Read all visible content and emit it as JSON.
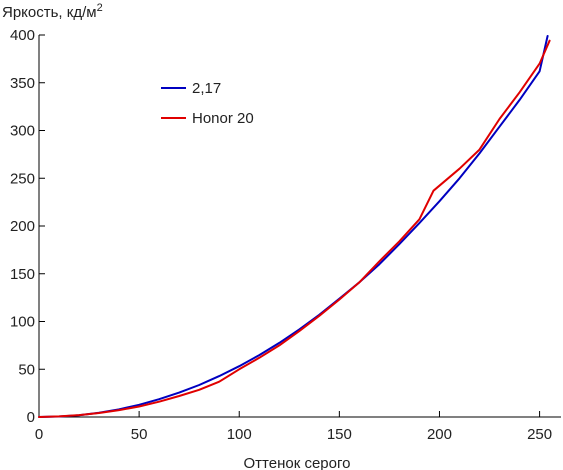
{
  "chart_data": {
    "type": "line",
    "ylabel": "Яркость, кд/м",
    "ylabel_sup": "2",
    "xlabel": "Оттенок серого",
    "xlim": [
      0,
      255
    ],
    "ylim": [
      0,
      400
    ],
    "xticks": [
      0,
      50,
      100,
      150,
      200,
      250
    ],
    "yticks": [
      0,
      50,
      100,
      150,
      200,
      250,
      300,
      350,
      400
    ],
    "grid": false,
    "legend_position": "top-left",
    "series": [
      {
        "name": "2,17",
        "color": "#0000c0",
        "x": [
          0,
          10,
          20,
          30,
          40,
          50,
          60,
          70,
          80,
          90,
          100,
          110,
          120,
          130,
          140,
          150,
          160,
          170,
          180,
          190,
          200,
          210,
          220,
          230,
          240,
          250,
          254
        ],
        "y": [
          0,
          0.5,
          1.8,
          4.5,
          8.1,
          12.8,
          18.6,
          25.5,
          33.5,
          42.8,
          53.2,
          64.8,
          77.6,
          91.7,
          107,
          124,
          141,
          160,
          181,
          203,
          226,
          250,
          276,
          304,
          332,
          362,
          399
        ]
      },
      {
        "name": "Honor 20",
        "color": "#e00000",
        "x": [
          0,
          10,
          20,
          30,
          40,
          50,
          60,
          70,
          80,
          90,
          100,
          110,
          120,
          130,
          140,
          150,
          160,
          170,
          180,
          190,
          197,
          210,
          220,
          230,
          240,
          250,
          255
        ],
        "y": [
          0,
          0.6,
          2,
          4.2,
          7.2,
          11,
          16,
          22,
          28.5,
          37,
          50,
          62,
          75,
          90,
          106,
          123,
          141,
          163,
          184,
          207,
          237,
          260,
          280,
          312,
          340,
          370,
          394
        ]
      }
    ]
  }
}
